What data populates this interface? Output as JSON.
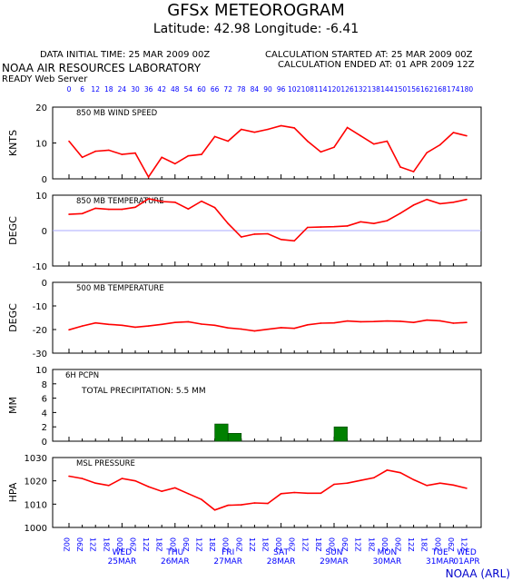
{
  "header": {
    "title": "GFSx METEOROGRAM",
    "coords": "Latitude: 42.98 Longitude:  -6.41",
    "initial_time": "DATA INITIAL TIME: 25 MAR 2009 00Z",
    "calc_started": "CALCULATION STARTED AT: 25 MAR 2009 00Z",
    "calc_ended": "CALCULATION ENDED AT: 01 APR 2009 12Z",
    "lab": "NOAA AIR RESOURCES LABORATORY",
    "server": "READY Web Server",
    "footer": "NOAA (ARL)"
  },
  "forecast_hours": [
    "0",
    "6",
    "12",
    "18",
    "24",
    "30",
    "36",
    "42",
    "48",
    "54",
    "60",
    "66",
    "72",
    "78",
    "84",
    "90",
    "96",
    "102",
    "108",
    "114",
    "120",
    "126",
    "132",
    "138",
    "144",
    "150",
    "156",
    "162",
    "168",
    "174",
    "180"
  ],
  "bottom_axis": {
    "hour_labels": [
      "00Z",
      "06Z",
      "12Z",
      "18Z",
      "00Z",
      "06Z",
      "12Z",
      "18Z",
      "00Z",
      "06Z",
      "12Z",
      "18Z",
      "00Z",
      "06Z",
      "12Z",
      "18Z",
      "00Z",
      "06Z",
      "12Z",
      "18Z",
      "00Z",
      "06Z",
      "12Z",
      "18Z",
      "00Z",
      "06Z",
      "12Z",
      "18Z",
      "00Z",
      "06Z",
      "12Z"
    ],
    "days": [
      {
        "idx": 4,
        "dow": "WED",
        "date": "25MAR"
      },
      {
        "idx": 8,
        "dow": "THU",
        "date": "26MAR"
      },
      {
        "idx": 12,
        "dow": "FRI",
        "date": "27MAR"
      },
      {
        "idx": 16,
        "dow": "SAT",
        "date": "28MAR"
      },
      {
        "idx": 20,
        "dow": "SUN",
        "date": "29MAR"
      },
      {
        "idx": 24,
        "dow": "MON",
        "date": "30MAR"
      },
      {
        "idx": 28,
        "dow": "TUE",
        "date": "31MAR"
      },
      {
        "idx": 30,
        "dow": "WED",
        "date": "01APR"
      }
    ]
  },
  "colors": {
    "line": "#ff0000",
    "bar": "#008000",
    "bar_edge": "#004000",
    "hours": "#0000ff",
    "zero_line": "#aaaaff"
  },
  "chart_data": [
    {
      "type": "line",
      "title": "850 MB  WIND SPEED",
      "ylabel": "KNTS",
      "ylim": [
        0,
        20
      ],
      "yticks": [
        0,
        10,
        20
      ],
      "x": [
        0,
        6,
        12,
        18,
        24,
        30,
        36,
        42,
        48,
        54,
        60,
        66,
        72,
        78,
        84,
        90,
        96,
        102,
        108,
        114,
        120,
        126,
        132,
        138,
        144,
        150,
        156,
        162,
        168,
        174,
        180
      ],
      "values": [
        10.5,
        6.0,
        7.7,
        8.0,
        6.8,
        7.2,
        0.5,
        6.0,
        4.2,
        6.4,
        6.8,
        11.8,
        10.5,
        13.8,
        13.0,
        13.8,
        14.8,
        14.2,
        10.5,
        7.5,
        8.8,
        14.3,
        12.0,
        9.7,
        10.5,
        3.3,
        2.0,
        7.3,
        9.5,
        12.9,
        12.0
      ]
    },
    {
      "type": "line",
      "title": "850 MB  TEMPERATURE",
      "ylabel": "DEGC",
      "ylim": [
        -10,
        10
      ],
      "yticks": [
        -10,
        0,
        10
      ],
      "zero_line": true,
      "x": [
        0,
        6,
        12,
        18,
        24,
        30,
        36,
        42,
        48,
        54,
        60,
        66,
        72,
        78,
        84,
        90,
        96,
        102,
        108,
        114,
        120,
        126,
        132,
        138,
        144,
        150,
        156,
        162,
        168,
        174,
        180
      ],
      "values": [
        4.6,
        4.8,
        6.3,
        6.0,
        6.0,
        6.6,
        9.0,
        8.2,
        8.0,
        6.1,
        8.3,
        6.5,
        2.0,
        -1.8,
        -1.0,
        -0.9,
        -2.5,
        -2.9,
        0.9,
        1.0,
        1.1,
        1.3,
        2.5,
        2.0,
        2.8,
        4.9,
        7.2,
        8.8,
        7.6,
        8.0,
        8.8
      ]
    },
    {
      "type": "line",
      "title": "500 MB  TEMPERATURE",
      "ylabel": "DEGC",
      "ylim": [
        -30,
        0
      ],
      "yticks": [
        -30,
        -20,
        -10,
        0
      ],
      "x": [
        0,
        6,
        12,
        18,
        24,
        30,
        36,
        42,
        48,
        54,
        60,
        66,
        72,
        78,
        84,
        90,
        96,
        102,
        108,
        114,
        120,
        126,
        132,
        138,
        144,
        150,
        156,
        162,
        168,
        174,
        180
      ],
      "values": [
        -20.1,
        -18.5,
        -17.2,
        -17.8,
        -18.2,
        -19.0,
        -18.5,
        -17.8,
        -17.0,
        -16.7,
        -17.7,
        -18.2,
        -19.3,
        -19.8,
        -20.6,
        -19.9,
        -19.2,
        -19.5,
        -18.0,
        -17.3,
        -17.2,
        -16.4,
        -16.7,
        -16.6,
        -16.4,
        -16.5,
        -17.0,
        -16.0,
        -16.3,
        -17.3,
        -17.0
      ]
    },
    {
      "type": "bar",
      "title": "6H PCPN",
      "ylabel": "MM",
      "annotation": "TOTAL PRECIPITATION:   5.5 MM",
      "ylim": [
        0,
        10
      ],
      "yticks": [
        0,
        2,
        4,
        6,
        8,
        10
      ],
      "bars": [
        {
          "x0": 66,
          "x1": 72,
          "value": 2.4
        },
        {
          "x0": 72,
          "x1": 78,
          "value": 1.1
        },
        {
          "x0": 120,
          "x1": 126,
          "value": 2.0
        }
      ]
    },
    {
      "type": "line",
      "title": "MSL PRESSURE",
      "ylabel": "HPA",
      "ylim": [
        1000,
        1030
      ],
      "yticks": [
        1000,
        1010,
        1020,
        1030
      ],
      "x": [
        0,
        6,
        12,
        18,
        24,
        30,
        36,
        42,
        48,
        54,
        60,
        66,
        72,
        78,
        84,
        90,
        96,
        102,
        108,
        114,
        120,
        126,
        132,
        138,
        144,
        150,
        156,
        162,
        168,
        174,
        180
      ],
      "values": [
        1022,
        1021,
        1019,
        1018,
        1021,
        1020,
        1017.5,
        1015.5,
        1017,
        1014.5,
        1012,
        1007.5,
        1009.5,
        1009.7,
        1010.5,
        1010.3,
        1014.5,
        1015,
        1014.7,
        1014.7,
        1018.5,
        1019,
        1020.2,
        1021.3,
        1024.6,
        1023.5,
        1020.5,
        1018,
        1019,
        1018.2,
        1016.8
      ]
    }
  ]
}
